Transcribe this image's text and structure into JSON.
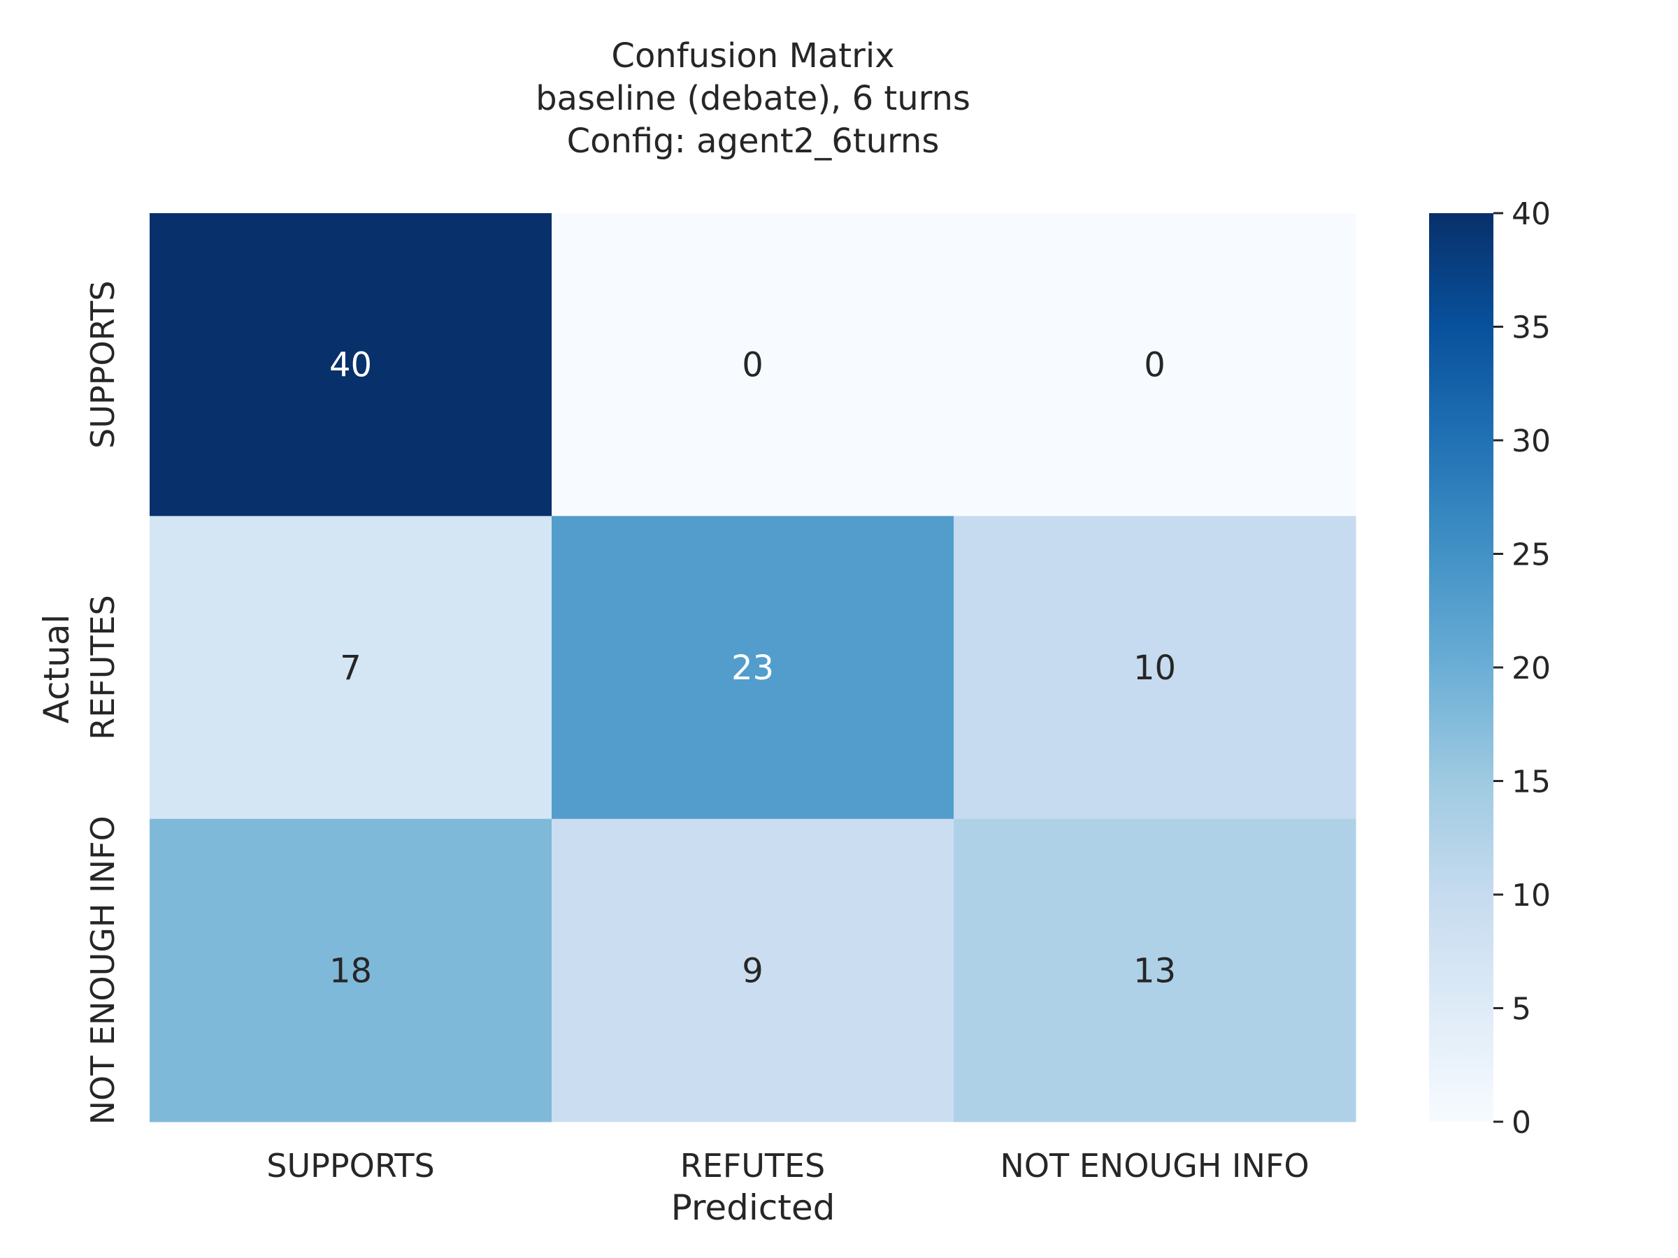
{
  "chart_data": {
    "type": "heatmap",
    "title_lines": [
      "Confusion Matrix",
      "baseline (debate), 6 turns",
      "Config: agent2_6turns"
    ],
    "xlabel": "Predicted",
    "ylabel": "Actual",
    "x_categories": [
      "SUPPORTS",
      "REFUTES",
      "NOT ENOUGH INFO"
    ],
    "y_categories": [
      "SUPPORTS",
      "REFUTES",
      "NOT ENOUGH INFO"
    ],
    "matrix": [
      [
        40,
        0,
        0
      ],
      [
        7,
        23,
        10
      ],
      [
        18,
        9,
        13
      ]
    ],
    "colormap": "Blues",
    "color_range": [
      0,
      40
    ],
    "colorbar_ticks": [
      0,
      5,
      10,
      15,
      20,
      25,
      30,
      35,
      40
    ],
    "annotation_colors": {
      "on_light": "#262626",
      "on_dark": "#ffffff"
    }
  }
}
